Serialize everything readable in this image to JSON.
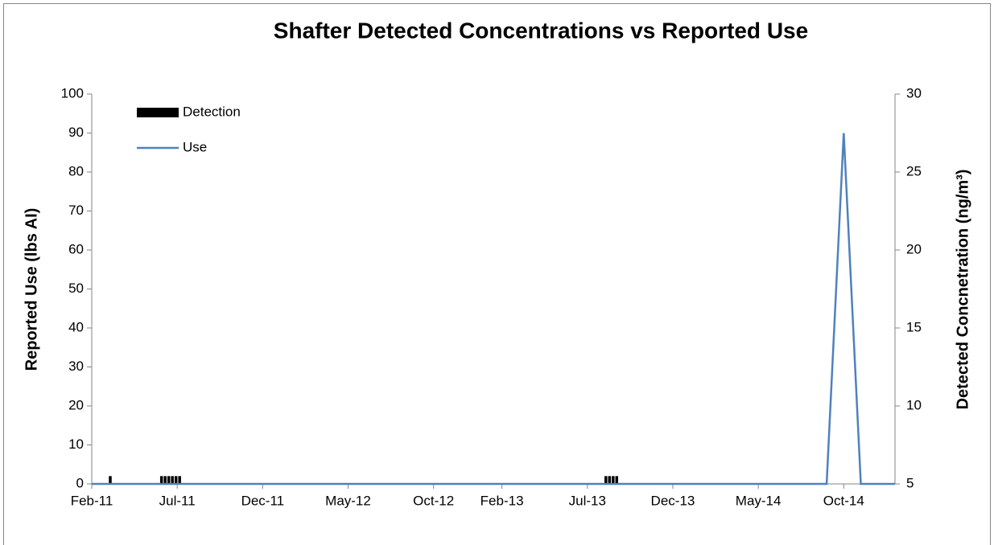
{
  "chart_data": {
    "type": "combo",
    "title": "Shafter Detected Concentrations vs Reported Use",
    "ylabel": "Reported Use (lbs AI)",
    "y2label": "Detected Concnetration (ng/m³)",
    "xlim": [
      "2011-02",
      "2015-01"
    ],
    "xticks": [
      {
        "value": "2011-02",
        "label": "Feb-11"
      },
      {
        "value": "2011-07",
        "label": "Jul-11"
      },
      {
        "value": "2011-12",
        "label": "Dec-11"
      },
      {
        "value": "2012-05",
        "label": "May-12"
      },
      {
        "value": "2012-10",
        "label": "Oct-12"
      },
      {
        "value": "2013-02",
        "label": "Feb-13"
      },
      {
        "value": "2013-07",
        "label": "Jul-13"
      },
      {
        "value": "2013-12",
        "label": "Dec-13"
      },
      {
        "value": "2014-05",
        "label": "May-14"
      },
      {
        "value": "2014-10",
        "label": "Oct-14"
      }
    ],
    "ylim": [
      0,
      100
    ],
    "yticks": [
      0,
      10,
      20,
      30,
      40,
      50,
      60,
      70,
      80,
      90,
      100
    ],
    "y2lim": [
      5,
      30
    ],
    "y2ticks": [
      5,
      10,
      15,
      20,
      25,
      30
    ],
    "legend": "upper left",
    "series": [
      {
        "name": "Detection",
        "type": "bar",
        "axis": "y2",
        "color": "#000000",
        "x": [
          "2011-03",
          "2011-06",
          "2011-06",
          "2011-06",
          "2011-06",
          "2011-06",
          "2011-06",
          "2013-08",
          "2013-08",
          "2013-08",
          "2013-08"
        ],
        "values": [
          5.5,
          5.5,
          5.5,
          5.5,
          5.5,
          5.5,
          5.5,
          5.5,
          5.5,
          5.5,
          5.5
        ]
      },
      {
        "name": "Use",
        "type": "line",
        "color": "#4f81bd",
        "x": [
          "2011-02",
          "2014-09",
          "2014-10",
          "2014-11",
          "2015-01"
        ],
        "values": [
          0,
          0,
          90,
          0,
          0
        ]
      }
    ]
  }
}
